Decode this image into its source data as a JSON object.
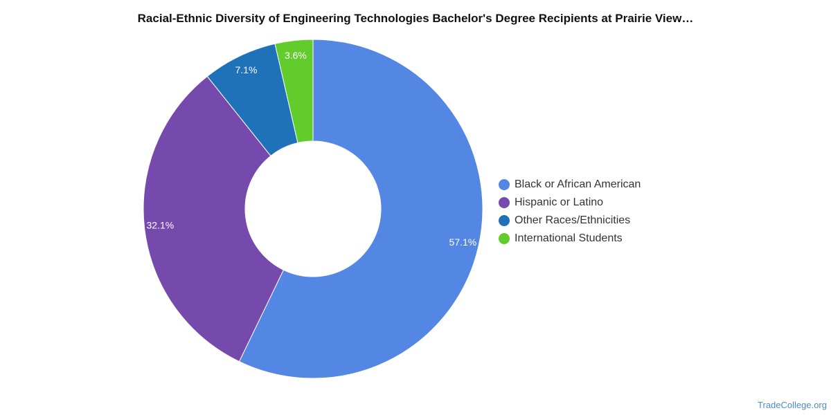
{
  "chart_data": {
    "type": "pie",
    "title": "Racial-Ethnic Diversity of Engineering Technologies Bachelor's Degree Recipients at Prairie View…",
    "donut": true,
    "categories": [
      "Black or African American",
      "Hispanic or Latino",
      "Other Races/Ethnicities",
      "International Students"
    ],
    "values": [
      57.1,
      32.1,
      7.1,
      3.6
    ],
    "labels": [
      "57.1%",
      "32.1%",
      "7.1%",
      "3.6%"
    ],
    "colors": [
      "#5486e3",
      "#7649ad",
      "#1f72b8",
      "#62cc2d"
    ],
    "legend_position": "right"
  },
  "watermark": "TradeCollege.org"
}
